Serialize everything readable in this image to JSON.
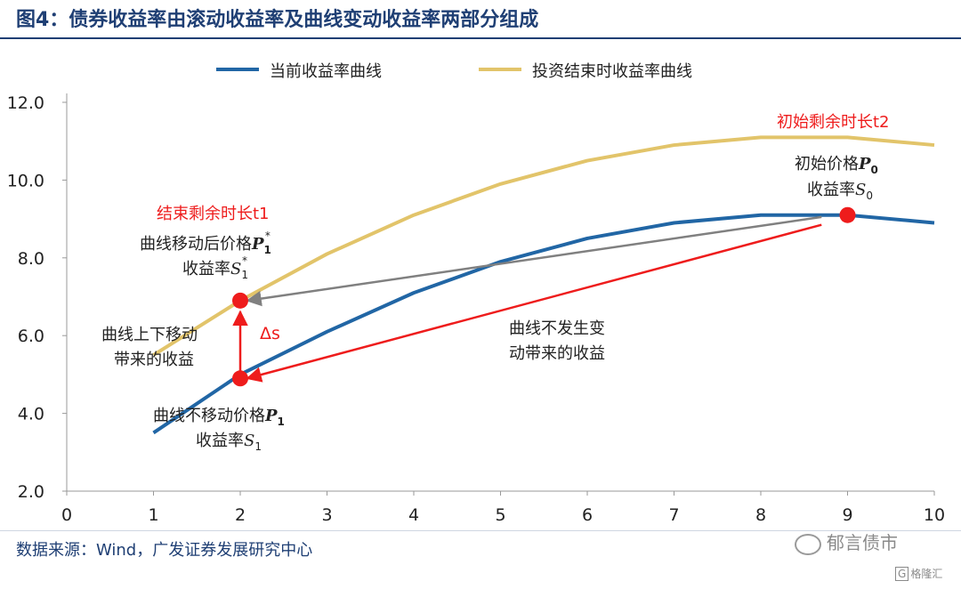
{
  "figure_title": "图4：债券收益率由滚动收益率及曲线变动收益率两部分组成",
  "source": "数据来源：Wind，广发证券发展研究中心",
  "watermark": "郁言债市",
  "watermark2": "格隆汇",
  "colors": {
    "blue": "#2166a5",
    "gold": "#e2c46a",
    "gray": "#808080",
    "red": "#ee1c1c",
    "title": "#1f3f74"
  },
  "chart_data": {
    "type": "line",
    "title": "图4：债券收益率由滚动收益率及曲线变动收益率两部分组成",
    "xlim": [
      0,
      10
    ],
    "ylim": [
      2.0,
      12.0
    ],
    "x_ticks": [
      "0",
      "1",
      "2",
      "3",
      "4",
      "5",
      "6",
      "7",
      "8",
      "9",
      "10"
    ],
    "y_ticks": [
      "2.0",
      "4.0",
      "6.0",
      "8.0",
      "10.0",
      "12.0"
    ],
    "legend_placement": "top",
    "grid": false,
    "series": [
      {
        "name": "当前收益率曲线",
        "color": "#2166a5",
        "x": [
          1,
          2,
          3,
          4,
          5,
          6,
          7,
          8,
          9,
          10
        ],
        "y": [
          3.5,
          5.0,
          6.1,
          7.1,
          7.9,
          8.5,
          8.9,
          9.1,
          9.1,
          8.9
        ]
      },
      {
        "name": "投资结束时收益率曲线",
        "color": "#e2c46a",
        "x": [
          1,
          2,
          3,
          4,
          5,
          6,
          7,
          8,
          9,
          10
        ],
        "y": [
          5.5,
          6.9,
          8.1,
          9.1,
          9.9,
          10.5,
          10.9,
          11.1,
          11.1,
          10.9
        ]
      }
    ],
    "points": [
      {
        "x": 2,
        "y": 6.9
      },
      {
        "x": 2,
        "y": 4.9
      },
      {
        "x": 9,
        "y": 9.1
      }
    ],
    "arrows": [
      {
        "from": [
          8.7,
          9.05
        ],
        "to": [
          2,
          6.9
        ],
        "color": "#808080"
      },
      {
        "from": [
          8.7,
          8.85
        ],
        "to": [
          2,
          4.9
        ],
        "color": "#ee1c1c"
      },
      {
        "from": [
          2,
          5.0
        ],
        "to": [
          2,
          6.8
        ],
        "color": "#ee1c1c"
      }
    ],
    "annotations": {
      "t2": "初始剩余时长t2",
      "p0_a": "初始价格",
      "p0_b": "P",
      "p0_sub": "0",
      "s0_a": "收益率",
      "s0_b": "S",
      "s0_sub": "0",
      "t1": "结束剩余时长t1",
      "p1s_a": "曲线移动后价格",
      "p1s_b": "P",
      "p1s_sub": "1",
      "p1s_sup": "*",
      "s1s_a": "收益率",
      "s1s_b": "S",
      "s1s_sub": "1",
      "s1s_sup": "*",
      "shift_1": "曲线上下移动",
      "shift_2": "带来的收益",
      "ds": "Δs",
      "roll_1": "曲线不发生变",
      "roll_2": "动带来的收益",
      "p1_a": "曲线不移动价格",
      "p1_b": "P",
      "p1_sub": "1",
      "s1_a": "收益率",
      "s1_b": "S",
      "s1_sub": "1"
    }
  }
}
